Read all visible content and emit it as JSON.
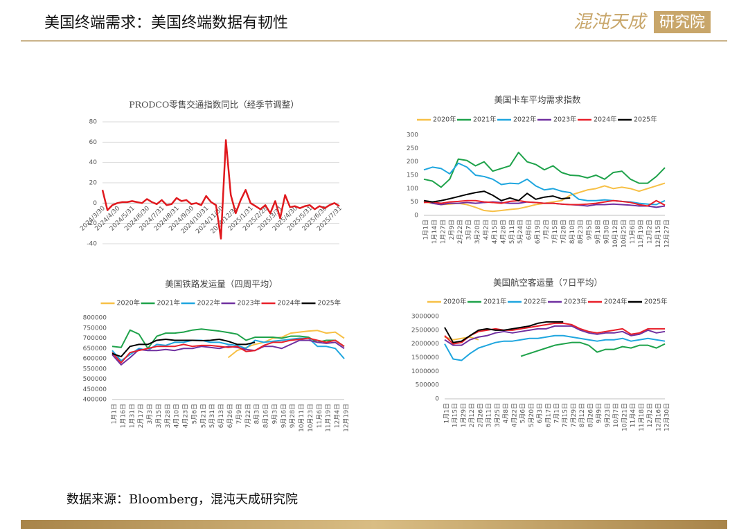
{
  "header": {
    "title": "美国终端需求：美国终端数据有韧性",
    "logo_left": "混沌天成",
    "logo_right": "研究院"
  },
  "footer": {
    "source": "数据来源：Bloomberg，混沌天成研究院"
  },
  "chart_data": [
    {
      "type": "line",
      "title": "PRODCO零售交通指数同比（经季节调整）",
      "color": "#e0191e",
      "grid": true,
      "label_rotation": -45,
      "categories": [
        "2024/3/30",
        null,
        null,
        "2024/4/30",
        null,
        null,
        "2024/5/31",
        null,
        null,
        "2024/6/30",
        null,
        null,
        "2024/7/31",
        null,
        null,
        "2024/8/31",
        null,
        null,
        "2024/9/30",
        null,
        null,
        "2024/10/31",
        null,
        null,
        "2024/11/30",
        null,
        null,
        "2024/12/31",
        null,
        null,
        "2025/1/31",
        null,
        null,
        "2025/2/28",
        null,
        null,
        "2025/3/31",
        null,
        null,
        "2025/4/30",
        null,
        null,
        "2025/5/31",
        null,
        null,
        "2025/6/30",
        null,
        null,
        "2025/7/31"
      ],
      "values": [
        13,
        -7,
        -2,
        0,
        1,
        1,
        2,
        1,
        0,
        4,
        1,
        -1,
        3,
        -2,
        -1,
        5,
        2,
        3,
        -1,
        0,
        -2,
        7,
        1,
        -2,
        -35,
        62,
        8,
        -10,
        3,
        13,
        0,
        -3,
        -6,
        -2,
        -10,
        2,
        -15,
        8,
        -4,
        -3,
        -5,
        -3,
        -2,
        -6,
        -3,
        -5,
        -2,
        0,
        -3
      ],
      "ylim": [
        -40,
        80
      ],
      "yticks": [
        -40,
        -20,
        0,
        20,
        40,
        60,
        80
      ]
    },
    {
      "type": "line",
      "title": "美国卡车平均需求指数",
      "grid": false,
      "legend": "top",
      "label_rotation": -90,
      "categories": [
        "1月1日",
        "1月14日",
        "1月27日",
        "2月9日",
        "2月22日",
        "3月7日",
        "3月20日",
        "4月2日",
        "4月15日",
        "4月28日",
        "5月11日",
        "5月24日",
        "6月6日",
        "6月19日",
        "7月2日",
        "7月15日",
        "7月28日",
        "8月10日",
        "8月23日",
        "9月5日",
        "9月18日",
        "9月30日",
        "10月12日",
        "10月25日",
        "11月6日",
        "11月19日",
        "12月2日",
        "12月15日",
        "12月27日"
      ],
      "series": [
        {
          "name": "2020年",
          "color": "#f7c046",
          "values": [
            50,
            45,
            40,
            42,
            45,
            40,
            30,
            18,
            15,
            18,
            22,
            25,
            32,
            40,
            45,
            50,
            55,
            75,
            85,
            95,
            100,
            110,
            100,
            105,
            100,
            90,
            100,
            110,
            120
          ]
        },
        {
          "name": "2021年",
          "color": "#1ea24a",
          "values": [
            135,
            128,
            105,
            135,
            210,
            205,
            185,
            200,
            165,
            175,
            185,
            235,
            200,
            190,
            170,
            185,
            160,
            150,
            148,
            140,
            150,
            135,
            160,
            165,
            135,
            120,
            120,
            145,
            178
          ]
        },
        {
          "name": "2022年",
          "color": "#1fa6df",
          "values": [
            170,
            180,
            175,
            155,
            195,
            180,
            150,
            145,
            135,
            115,
            120,
            118,
            135,
            110,
            95,
            100,
            90,
            85,
            60,
            55,
            55,
            58,
            55,
            52,
            50,
            45,
            42,
            40,
            55
          ]
        },
        {
          "name": "2023年",
          "color": "#7030a0",
          "values": [
            55,
            45,
            40,
            45,
            45,
            48,
            45,
            48,
            50,
            48,
            45,
            45,
            50,
            48,
            45,
            45,
            42,
            40,
            38,
            35,
            40,
            40,
            42,
            40,
            38,
            35,
            35,
            30,
            35
          ]
        },
        {
          "name": "2024年",
          "color": "#e8202a",
          "values": [
            48,
            50,
            45,
            50,
            52,
            55,
            55,
            50,
            48,
            45,
            52,
            55,
            50,
            48,
            45,
            45,
            42,
            40,
            40,
            42,
            45,
            50,
            55,
            52,
            48,
            40,
            35,
            55,
            38
          ]
        },
        {
          "name": "2025年",
          "color": "#000000",
          "values": [
            55,
            50,
            55,
            62,
            70,
            78,
            85,
            90,
            75,
            55,
            65,
            55,
            82,
            60,
            68,
            72,
            62,
            65,
            null,
            null,
            null,
            null,
            null,
            null,
            null,
            null,
            null,
            null,
            null
          ]
        }
      ],
      "ylim": [
        0,
        300
      ],
      "yticks": [
        0,
        50,
        100,
        150,
        200,
        250,
        300
      ]
    },
    {
      "type": "line",
      "title": "美国铁路发运量（四周平均）",
      "grid": false,
      "legend": "top",
      "label_rotation": -90,
      "categories": [
        "1月1日",
        "1月16日",
        "1月31日",
        "2月17日",
        "3月3日",
        "3月15日",
        "3月28日",
        "4月10日",
        "4月23日",
        "5月6日",
        "5月21日",
        "5月31日",
        "6月13日",
        "6月26日",
        "7月9日",
        "7月22日",
        "8月3日",
        "8月16日",
        "9月3日",
        "9月16日",
        "9月28日",
        "10月11日",
        "10月23日",
        "11月6日",
        "11月19日",
        "12月4日",
        "12月19日"
      ],
      "series": [
        {
          "name": "2020年",
          "color": "#f7c046",
          "values": [
            null,
            null,
            null,
            null,
            null,
            null,
            null,
            null,
            null,
            null,
            null,
            null,
            null,
            605000,
            640000,
            655000,
            670000,
            680000,
            700000,
            705000,
            725000,
            730000,
            735000,
            738000,
            725000,
            730000,
            700000
          ]
        },
        {
          "name": "2021年",
          "color": "#1ea24a",
          "values": [
            660000,
            655000,
            740000,
            720000,
            650000,
            710000,
            725000,
            725000,
            730000,
            740000,
            745000,
            740000,
            735000,
            728000,
            720000,
            690000,
            705000,
            705000,
            705000,
            700000,
            710000,
            710000,
            705000,
            680000,
            690000,
            690000,
            660000
          ]
        },
        {
          "name": "2022年",
          "color": "#1fa6df",
          "values": [
            640000,
            590000,
            620000,
            650000,
            640000,
            670000,
            665000,
            680000,
            680000,
            690000,
            690000,
            680000,
            680000,
            670000,
            665000,
            650000,
            690000,
            680000,
            685000,
            690000,
            695000,
            700000,
            700000,
            660000,
            660000,
            650000,
            600000
          ]
        },
        {
          "name": "2023年",
          "color": "#7030a0",
          "values": [
            620000,
            570000,
            605000,
            645000,
            640000,
            640000,
            645000,
            640000,
            650000,
            650000,
            660000,
            655000,
            650000,
            660000,
            655000,
            645000,
            640000,
            660000,
            660000,
            650000,
            670000,
            690000,
            690000,
            680000,
            675000,
            680000,
            650000
          ]
        },
        {
          "name": "2024年",
          "color": "#e8202a",
          "values": [
            630000,
            580000,
            630000,
            640000,
            650000,
            660000,
            660000,
            660000,
            670000,
            660000,
            665000,
            665000,
            660000,
            655000,
            660000,
            635000,
            640000,
            665000,
            680000,
            680000,
            690000,
            695000,
            700000,
            690000,
            680000,
            690000,
            660000
          ]
        },
        {
          "name": "2025年",
          "color": "#000000",
          "values": [
            625000,
            610000,
            660000,
            670000,
            670000,
            690000,
            695000,
            690000,
            690000,
            690000,
            688000,
            690000,
            695000,
            685000,
            670000,
            670000,
            680000,
            null,
            null,
            null,
            null,
            null,
            null,
            null,
            null,
            null,
            null
          ]
        }
      ],
      "ylim": [
        400000,
        800000
      ],
      "yticks": [
        400000,
        450000,
        500000,
        550000,
        600000,
        650000,
        700000,
        750000,
        800000
      ]
    },
    {
      "type": "line",
      "title": "美国航空客运量（7日平均）",
      "grid": false,
      "legend": "top",
      "label_rotation": -90,
      "categories": [
        "1月1日",
        "1月15日",
        "1月29日",
        "2月12日",
        "2月26日",
        "3月11日",
        "3月25日",
        "4月8日",
        "4月22日",
        "5月6日",
        "5月20日",
        "6月3日",
        "6月17日",
        "7月1日",
        "7月15日",
        "7月29日",
        "8月12日",
        "8月26日",
        "9月9日",
        "9月23日",
        "10月7日",
        "10月21日",
        "11月4日",
        "11月18日",
        "12月2日",
        "12月16日",
        "12月30日"
      ],
      "series": [
        {
          "name": "2020年",
          "color": "#f7c046",
          "values": [
            2250000,
            2150000,
            2200000,
            2250000,
            2150000,
            null,
            null,
            null,
            null,
            null,
            null,
            null,
            null,
            null,
            null,
            null,
            null,
            null,
            null,
            null,
            null,
            null,
            null,
            null,
            null,
            null,
            null
          ]
        },
        {
          "name": "2021年",
          "color": "#1ea24a",
          "values": [
            null,
            null,
            null,
            null,
            null,
            null,
            null,
            null,
            null,
            1550000,
            1650000,
            1750000,
            1850000,
            1950000,
            2000000,
            2050000,
            2050000,
            1950000,
            1700000,
            1800000,
            1800000,
            1900000,
            1850000,
            1950000,
            1950000,
            1850000,
            2000000
          ]
        },
        {
          "name": "2022年",
          "color": "#1fa6df",
          "values": [
            2000000,
            1450000,
            1400000,
            1650000,
            1850000,
            1950000,
            2050000,
            2100000,
            2100000,
            2150000,
            2200000,
            2200000,
            2250000,
            2300000,
            2300000,
            2250000,
            2200000,
            2150000,
            2100000,
            2150000,
            2150000,
            2200000,
            2100000,
            2150000,
            2200000,
            2150000,
            2100000
          ]
        },
        {
          "name": "2023年",
          "color": "#7030a0",
          "values": [
            2150000,
            1950000,
            1950000,
            2150000,
            2250000,
            2300000,
            2400000,
            2450000,
            2400000,
            2450000,
            2500000,
            2550000,
            2550000,
            2650000,
            2650000,
            2650000,
            2500000,
            2400000,
            2350000,
            2400000,
            2400000,
            2450000,
            2300000,
            2350000,
            2500000,
            2400000,
            2450000
          ]
        },
        {
          "name": "2024年",
          "color": "#e8202a",
          "values": [
            2300000,
            2000000,
            2050000,
            2300000,
            2450000,
            2500000,
            2550000,
            2500000,
            2500000,
            2550000,
            2600000,
            2650000,
            2700000,
            2750000,
            2750000,
            2700000,
            2550000,
            2450000,
            2400000,
            2450000,
            2500000,
            2550000,
            2350000,
            2400000,
            2550000,
            2550000,
            2550000
          ]
        },
        {
          "name": "2025年",
          "color": "#000000",
          "values": [
            2600000,
            2050000,
            2100000,
            2300000,
            2500000,
            2550000,
            2500000,
            2500000,
            2550000,
            2600000,
            2650000,
            2750000,
            2800000,
            2800000,
            2800000,
            null,
            null,
            null,
            null,
            null,
            null,
            null,
            null,
            null,
            null,
            null,
            null
          ]
        }
      ],
      "ylim": [
        0,
        3000000
      ],
      "yticks": [
        0,
        500000,
        1000000,
        1500000,
        2000000,
        2500000,
        3000000
      ]
    }
  ]
}
